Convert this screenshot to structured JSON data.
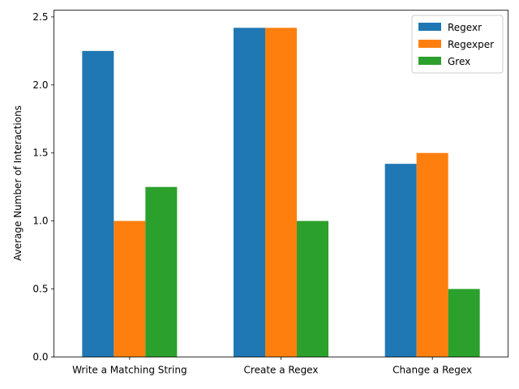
{
  "chart_data": {
    "type": "bar",
    "title": "",
    "xlabel": "",
    "ylabel": "Average Number of Interactions",
    "categories": [
      "Write a Matching String",
      "Create a Regex",
      "Change a Regex"
    ],
    "series": [
      {
        "name": "Regexr",
        "color": "#1f77b4",
        "values": [
          2.25,
          2.42,
          1.42
        ]
      },
      {
        "name": "Regexper",
        "color": "#ff7f0e",
        "values": [
          1.0,
          2.42,
          1.5
        ]
      },
      {
        "name": "Grex",
        "color": "#2ca02c",
        "values": [
          1.25,
          1.0,
          0.5
        ]
      }
    ],
    "ylim": [
      0,
      2.55
    ],
    "yticks": [
      "0.0",
      "0.5",
      "1.0",
      "1.5",
      "2.0",
      "2.5"
    ],
    "grid": false,
    "legend": "top-right"
  }
}
